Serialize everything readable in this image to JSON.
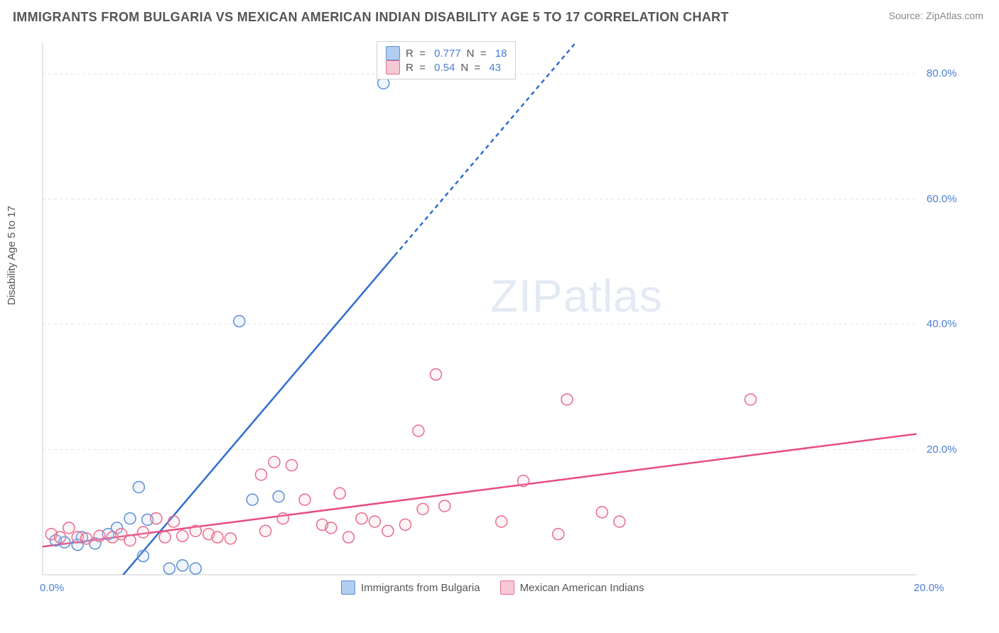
{
  "header": {
    "title": "IMMIGRANTS FROM BULGARIA VS MEXICAN AMERICAN INDIAN DISABILITY AGE 5 TO 17 CORRELATION CHART",
    "source": "Source: ZipAtlas.com"
  },
  "chart": {
    "type": "scatter",
    "y_axis_label": "Disability Age 5 to 17",
    "watermark": "ZIPatlas",
    "background_color": "#ffffff",
    "grid_color": "#e5e5e5",
    "axis_line_color": "#cccccc",
    "tick_label_color": "#4a7fd8",
    "xlim": [
      0,
      20
    ],
    "ylim": [
      0,
      85
    ],
    "x_ticks": [
      {
        "value": 0.0,
        "label": "0.0%"
      },
      {
        "value": 20.0,
        "label": "20.0%"
      }
    ],
    "y_ticks": [
      {
        "value": 20.0,
        "label": "20.0%"
      },
      {
        "value": 40.0,
        "label": "40.0%"
      },
      {
        "value": 60.0,
        "label": "60.0%"
      },
      {
        "value": 80.0,
        "label": "80.0%"
      }
    ],
    "marker_radius": 8,
    "marker_stroke_width": 1.5,
    "marker_fill_opacity": 0.2,
    "trend_line_width": 2.5,
    "trend_dash_pattern": "6,5",
    "series": [
      {
        "id": "bulgaria",
        "label": "Immigrants from Bulgaria",
        "color_fill": "#b3cdf0",
        "color_stroke": "#5b8fd6",
        "trend_color": "#2e6fd0",
        "R": 0.777,
        "N": 18,
        "trend_line": {
          "x1": 1.6,
          "y1": -2,
          "x2": 12.2,
          "y2": 85,
          "solid_until_y": 51
        },
        "points": [
          {
            "x": 0.3,
            "y": 5.5
          },
          {
            "x": 0.5,
            "y": 5.2
          },
          {
            "x": 0.8,
            "y": 4.8
          },
          {
            "x": 0.9,
            "y": 6.0
          },
          {
            "x": 1.2,
            "y": 5.0
          },
          {
            "x": 1.5,
            "y": 6.5
          },
          {
            "x": 1.7,
            "y": 7.5
          },
          {
            "x": 2.0,
            "y": 9.0
          },
          {
            "x": 2.2,
            "y": 14.0
          },
          {
            "x": 2.3,
            "y": 3.0
          },
          {
            "x": 2.4,
            "y": 8.8
          },
          {
            "x": 2.9,
            "y": 1.0
          },
          {
            "x": 3.2,
            "y": 1.5
          },
          {
            "x": 3.5,
            "y": 1.0
          },
          {
            "x": 4.5,
            "y": 40.5
          },
          {
            "x": 4.8,
            "y": 12.0
          },
          {
            "x": 5.4,
            "y": 12.5
          },
          {
            "x": 7.8,
            "y": 78.5
          }
        ]
      },
      {
        "id": "mexican",
        "label": "Mexican American Indians",
        "color_fill": "#f7c9d4",
        "color_stroke": "#e86b8f",
        "trend_color": "#e84c84",
        "R": 0.54,
        "N": 43,
        "trend_line": {
          "x1": 0,
          "y1": 4.5,
          "x2": 20,
          "y2": 22.5,
          "solid_until_y": 22.5
        },
        "points": [
          {
            "x": 0.2,
            "y": 6.5
          },
          {
            "x": 0.4,
            "y": 6.0
          },
          {
            "x": 0.6,
            "y": 7.5
          },
          {
            "x": 0.8,
            "y": 6.0
          },
          {
            "x": 1.0,
            "y": 5.8
          },
          {
            "x": 1.3,
            "y": 6.2
          },
          {
            "x": 1.6,
            "y": 6.0
          },
          {
            "x": 1.8,
            "y": 6.5
          },
          {
            "x": 2.0,
            "y": 5.5
          },
          {
            "x": 2.3,
            "y": 6.8
          },
          {
            "x": 2.6,
            "y": 9.0
          },
          {
            "x": 2.8,
            "y": 6.0
          },
          {
            "x": 3.0,
            "y": 8.5
          },
          {
            "x": 3.2,
            "y": 6.2
          },
          {
            "x": 3.5,
            "y": 7.0
          },
          {
            "x": 3.8,
            "y": 6.5
          },
          {
            "x": 4.0,
            "y": 6.0
          },
          {
            "x": 4.3,
            "y": 5.8
          },
          {
            "x": 5.0,
            "y": 16.0
          },
          {
            "x": 5.1,
            "y": 7.0
          },
          {
            "x": 5.3,
            "y": 18.0
          },
          {
            "x": 5.5,
            "y": 9.0
          },
          {
            "x": 5.7,
            "y": 17.5
          },
          {
            "x": 6.0,
            "y": 12.0
          },
          {
            "x": 6.4,
            "y": 8.0
          },
          {
            "x": 6.6,
            "y": 7.5
          },
          {
            "x": 6.8,
            "y": 13.0
          },
          {
            "x": 7.0,
            "y": 6.0
          },
          {
            "x": 7.3,
            "y": 9.0
          },
          {
            "x": 7.6,
            "y": 8.5
          },
          {
            "x": 7.9,
            "y": 7.0
          },
          {
            "x": 8.3,
            "y": 8.0
          },
          {
            "x": 8.6,
            "y": 23.0
          },
          {
            "x": 8.7,
            "y": 10.5
          },
          {
            "x": 9.0,
            "y": 32.0
          },
          {
            "x": 9.2,
            "y": 11.0
          },
          {
            "x": 10.5,
            "y": 8.5
          },
          {
            "x": 11.0,
            "y": 15.0
          },
          {
            "x": 11.8,
            "y": 6.5
          },
          {
            "x": 12.0,
            "y": 28.0
          },
          {
            "x": 12.8,
            "y": 10.0
          },
          {
            "x": 13.2,
            "y": 8.5
          },
          {
            "x": 16.2,
            "y": 28.0
          }
        ]
      }
    ],
    "r_legend_labels": {
      "R": "R  = ",
      "N": "N  = "
    },
    "bottom_legend_swatch_size": 20
  }
}
